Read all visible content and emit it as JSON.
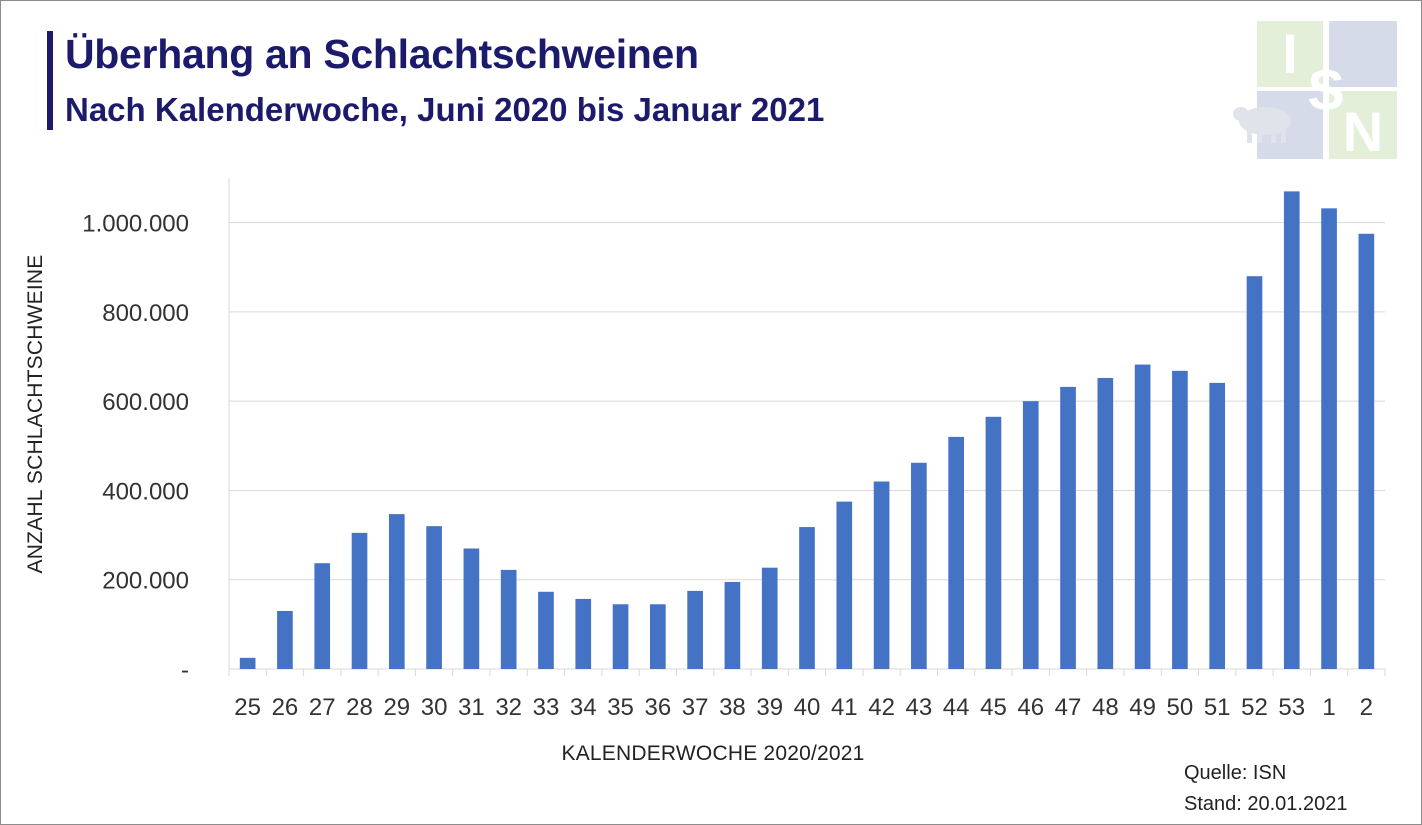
{
  "header": {
    "title": "Überhang an Schlachtschweinen",
    "subtitle": "Nach Kalenderwoche, Juni 2020 bis Januar 2021"
  },
  "logo": {
    "letters": [
      "I",
      "S",
      "N"
    ],
    "colors": {
      "blue": "#d6dbe9",
      "green": "#e3efd9",
      "letter": "#ffffff",
      "pig": "#dfe3ea"
    }
  },
  "source": {
    "line1": "Quelle: ISN",
    "line2": "Stand: 20.01.2021"
  },
  "chart_data": {
    "type": "bar",
    "xlabel": "KALENDERWOCHE 2020/2021",
    "ylabel": "ANZAHL SCHLACHTSCHWEINE",
    "categories": [
      "25",
      "26",
      "27",
      "28",
      "29",
      "30",
      "31",
      "32",
      "33",
      "34",
      "35",
      "36",
      "37",
      "38",
      "39",
      "40",
      "41",
      "42",
      "43",
      "44",
      "45",
      "46",
      "47",
      "48",
      "49",
      "50",
      "51",
      "52",
      "53",
      "1",
      "2"
    ],
    "values": [
      25000,
      130000,
      237000,
      305000,
      347000,
      320000,
      270000,
      222000,
      173000,
      157000,
      145000,
      145000,
      175000,
      195000,
      227000,
      318000,
      375000,
      420000,
      462000,
      520000,
      565000,
      600000,
      632000,
      652000,
      682000,
      668000,
      641000,
      880000,
      1070000,
      1032000,
      975000
    ],
    "ylim": [
      0,
      1100000
    ],
    "yticks": [
      0,
      200000,
      400000,
      600000,
      800000,
      1000000
    ],
    "ytick_labels": [
      "-",
      "200.000",
      "400.000",
      "600.000",
      "800.000",
      "1.000.000"
    ],
    "grid": true,
    "legend": "none",
    "bar_color": "#4472c4"
  }
}
